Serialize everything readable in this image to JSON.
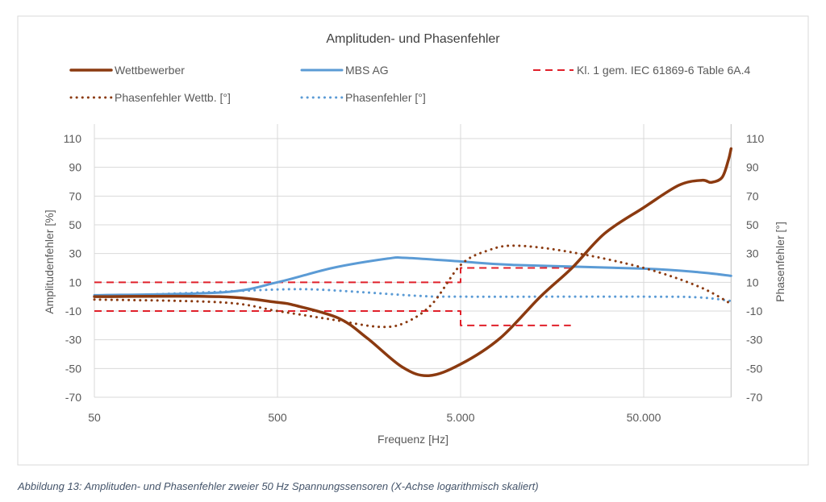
{
  "chart_data": {
    "type": "line",
    "title": "Amplituden- und Phasenfehler",
    "xlabel": "Frequenz [Hz]",
    "ylabel": "Amplitudenfehler [%]",
    "y2label": "Phasenfehler [°]",
    "x_scale": "log",
    "xlim": [
      50,
      150000
    ],
    "ylim": [
      -70,
      110
    ],
    "y2lim": [
      -70,
      110
    ],
    "x_ticks": [
      50,
      500,
      5000,
      50000
    ],
    "x_tick_labels": [
      "50",
      "500",
      "5.000",
      "50.000"
    ],
    "y_ticks": [
      110,
      90,
      70,
      50,
      30,
      10,
      -10,
      -30,
      -50,
      -70
    ],
    "grid": true,
    "legend_position": "top",
    "series": [
      {
        "name": "Wettbewerber",
        "axis": "left",
        "style": "solid",
        "color": "#8b3a10",
        "x": [
          50,
          240,
          500,
          620,
          1080,
          1550,
          2400,
          3350,
          5000,
          8200,
          13650,
          20300,
          30600,
          50000,
          77700,
          104000,
          117000,
          134000,
          145000,
          150000
        ],
        "y": [
          0,
          0,
          -4,
          -6,
          -15,
          -29,
          -49,
          -55,
          -47,
          -29,
          0,
          20,
          44,
          62,
          77.5,
          81,
          79.5,
          83,
          95,
          103
        ]
      },
      {
        "name": "MBS AG",
        "axis": "left",
        "style": "solid",
        "color": "#5b9bd5",
        "x": [
          50,
          250,
          500,
          1000,
          2000,
          2500,
          5000,
          10000,
          50000,
          100000,
          150000
        ],
        "y": [
          1,
          3,
          10,
          20,
          26.5,
          27,
          24.5,
          22,
          19.5,
          17,
          14.5
        ]
      },
      {
        "name": "Kl. 1 gem. IEC 61869-6 Table 6A.4",
        "axis": "left",
        "style": "dashed",
        "color": "#e0202a",
        "segments": [
          {
            "x": [
              50,
              5000,
              5000,
              20000
            ],
            "y": [
              10,
              10,
              20,
              20
            ]
          },
          {
            "x": [
              50,
              5000,
              5000,
              20000
            ],
            "y": [
              -10,
              -10,
              -20,
              -20
            ]
          }
        ]
      },
      {
        "name": "Phasenfehler Wettb. [°]",
        "axis": "right",
        "style": "dotted",
        "color": "#8b3a10",
        "x": [
          50,
          250,
          500,
          1000,
          1800,
          2500,
          3500,
          5000,
          7000,
          10000,
          20000,
          50000,
          100000,
          150000
        ],
        "y": [
          -2,
          -4,
          -10,
          -16,
          -21,
          -18,
          -5,
          22,
          32,
          35.5,
          31,
          20,
          7,
          -5
        ]
      },
      {
        "name": "Phasenfehler [°]",
        "axis": "right",
        "style": "dotted",
        "color": "#5b9bd5",
        "x": [
          50,
          200,
          500,
          800,
          1500,
          3000,
          5000,
          50000,
          100000,
          150000
        ],
        "y": [
          0,
          3,
          5,
          5,
          3,
          0.5,
          0,
          0,
          -0.5,
          -3
        ]
      }
    ]
  },
  "caption": "Abbildung 13: Amplituden- und Phasenfehler zweier 50 Hz Spannungssensoren (X-Achse logarithmisch skaliert)"
}
